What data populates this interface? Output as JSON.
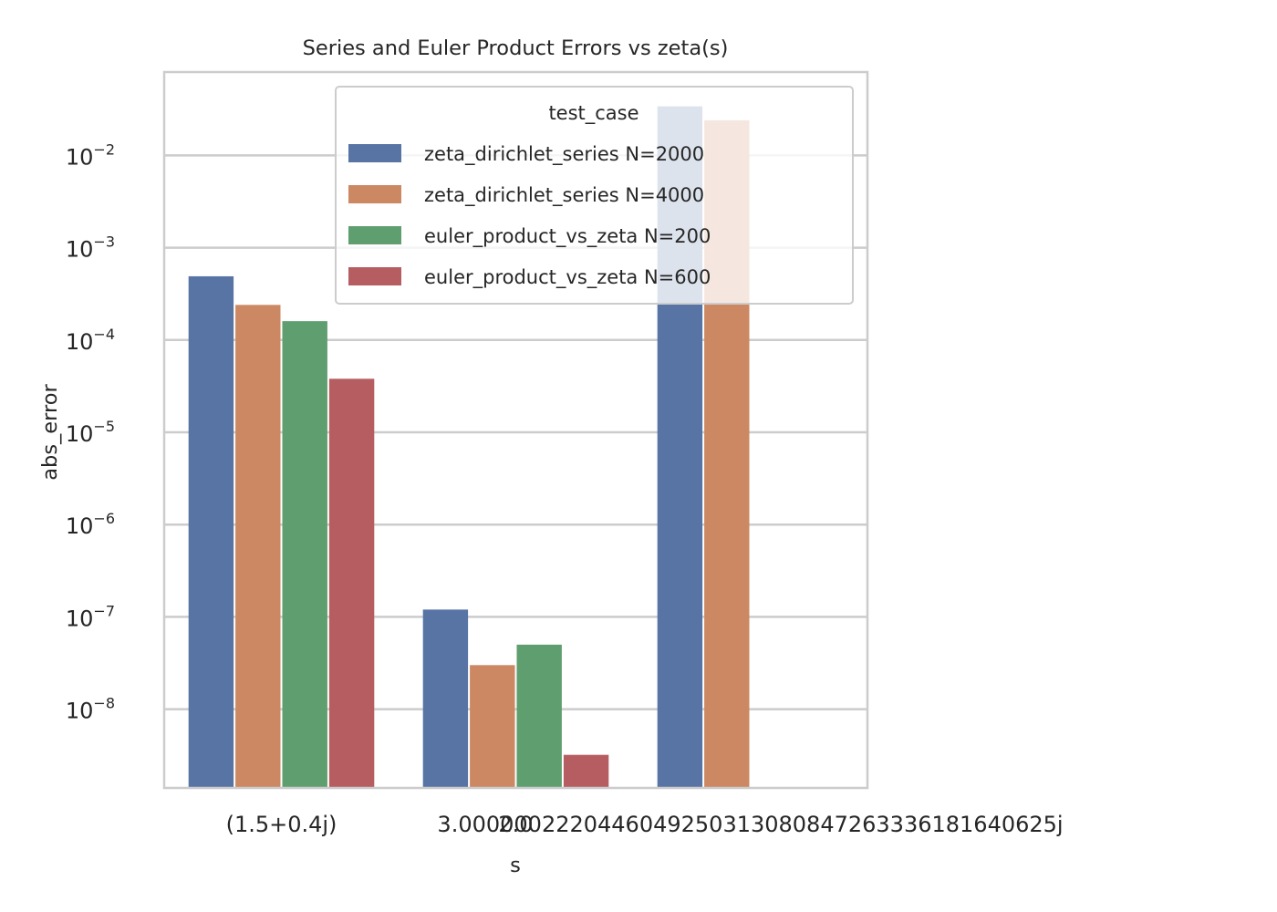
{
  "chart_data": {
    "type": "bar",
    "title": "Series and Euler Product Errors vs zeta(s)",
    "xlabel": "s",
    "ylabel": "abs_error",
    "yscale": "log",
    "ylim": [
      1.4e-09,
      0.08
    ],
    "grid": true,
    "legend_position": "top-right",
    "legend_title": "test_case",
    "categories": [
      "(1.5+0.4j)",
      "2.0",
      "3.0000002220446049250313080847263336181640625j"
    ],
    "y_ticks": [
      {
        "base": "10",
        "exp": "−2",
        "value": 0.01
      },
      {
        "base": "10",
        "exp": "−3",
        "value": 0.001
      },
      {
        "base": "10",
        "exp": "−4",
        "value": 0.0001
      },
      {
        "base": "10",
        "exp": "−5",
        "value": 1e-05
      },
      {
        "base": "10",
        "exp": "−6",
        "value": 1e-06
      },
      {
        "base": "10",
        "exp": "−7",
        "value": 1e-07
      },
      {
        "base": "10",
        "exp": "−8",
        "value": 1e-08
      }
    ],
    "series": [
      {
        "name": "zeta_dirichlet_series N=2000",
        "color": "#5874a4",
        "values": [
          0.00049,
          1.2e-07,
          0.034
        ]
      },
      {
        "name": "zeta_dirichlet_series N=4000",
        "color": "#cc8862",
        "values": [
          0.00024,
          3e-08,
          0.024
        ]
      },
      {
        "name": "euler_product_vs_zeta N=200",
        "color": "#5f9e6e",
        "values": [
          0.00016,
          5e-08,
          null
        ]
      },
      {
        "name": "euler_product_vs_zeta N=600",
        "color": "#b55d60",
        "values": [
          3.8e-05,
          3.2e-09,
          null
        ]
      }
    ]
  }
}
